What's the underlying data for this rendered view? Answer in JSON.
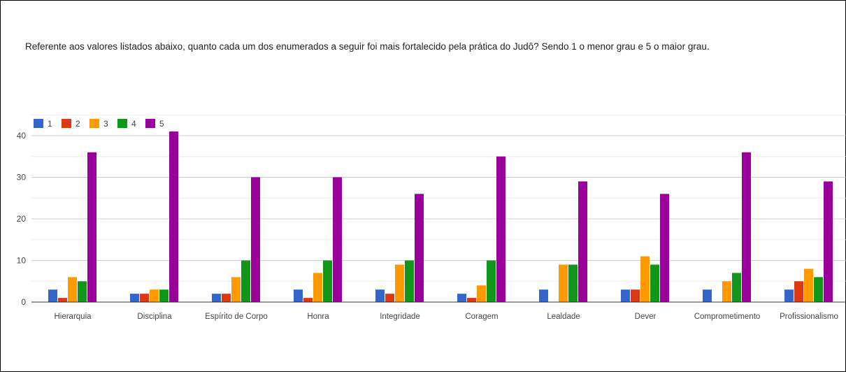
{
  "question": "Referente aos valores listados abaixo, quanto cada um dos enumerados a seguir foi mais fortalecido pela prática do Judô? Sendo 1 o menor grau e 5 o maior grau.",
  "chart_data": {
    "type": "bar",
    "title": "Referente aos valores listados abaixo, quanto cada um dos enumerados a seguir foi mais fortalecido pela prática do Judô? Sendo 1 o menor grau e 5 o maior grau.",
    "xlabel": "",
    "ylabel": "",
    "ylim": [
      0,
      45
    ],
    "yticks": [
      0,
      10,
      20,
      30,
      40
    ],
    "grid": true,
    "legend_position": "top-left",
    "categories": [
      "Hierarquia",
      "Disciplina",
      "Espírito de Corpo",
      "Honra",
      "Integridade",
      "Coragem",
      "Lealdade",
      "Dever",
      "Comprometimento",
      "Profissionalismo"
    ],
    "series": [
      {
        "name": "1",
        "color": "#3366cc",
        "values": [
          3,
          2,
          2,
          3,
          3,
          2,
          3,
          3,
          3,
          3
        ]
      },
      {
        "name": "2",
        "color": "#dc3912",
        "values": [
          1,
          2,
          2,
          1,
          2,
          1,
          0,
          3,
          0,
          5
        ]
      },
      {
        "name": "3",
        "color": "#ff9900",
        "values": [
          6,
          3,
          6,
          7,
          9,
          4,
          9,
          11,
          5,
          8
        ]
      },
      {
        "name": "4",
        "color": "#109618",
        "values": [
          5,
          3,
          10,
          10,
          10,
          10,
          9,
          9,
          7,
          6
        ]
      },
      {
        "name": "5",
        "color": "#990099",
        "values": [
          36,
          41,
          30,
          30,
          26,
          35,
          29,
          26,
          36,
          29
        ]
      }
    ]
  }
}
